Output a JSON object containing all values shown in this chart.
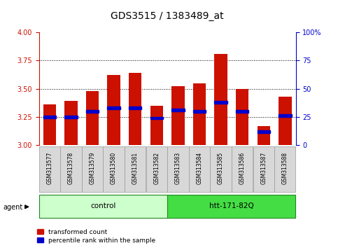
{
  "title": "GDS3515 / 1383489_at",
  "samples": [
    "GSM313577",
    "GSM313578",
    "GSM313579",
    "GSM313580",
    "GSM313581",
    "GSM313582",
    "GSM313583",
    "GSM313584",
    "GSM313585",
    "GSM313586",
    "GSM313587",
    "GSM313588"
  ],
  "transformed_counts": [
    3.36,
    3.39,
    3.48,
    3.62,
    3.64,
    3.35,
    3.52,
    3.55,
    3.81,
    3.5,
    3.17,
    3.43
  ],
  "percentile_ranks": [
    25,
    25,
    30,
    33,
    33,
    24,
    31,
    30,
    38,
    30,
    12,
    26
  ],
  "bar_color": "#cc1100",
  "marker_color": "#0000cc",
  "y_min": 3.0,
  "y_max": 4.0,
  "y_ticks_left": [
    3.0,
    3.25,
    3.5,
    3.75,
    4.0
  ],
  "y_ticks_right": [
    0,
    25,
    50,
    75,
    100
  ],
  "y_right_labels": [
    "0",
    "25",
    "50",
    "75",
    "100%"
  ],
  "groups": [
    {
      "label": "control",
      "start": 0,
      "end": 5,
      "color": "#ccffcc"
    },
    {
      "label": "htt-171-82Q",
      "start": 6,
      "end": 11,
      "color": "#44dd44"
    }
  ],
  "agent_label": "agent",
  "legend_items": [
    {
      "color": "#cc1100",
      "label": "transformed count"
    },
    {
      "color": "#0000cc",
      "label": "percentile rank within the sample"
    }
  ],
  "bar_width": 0.6,
  "grid_color": "#000000",
  "background_color": "#ffffff",
  "axis_color_left": "#cc1100",
  "axis_color_right": "#0000cc",
  "title_fontsize": 10,
  "tick_fontsize": 7,
  "label_fontsize": 7
}
